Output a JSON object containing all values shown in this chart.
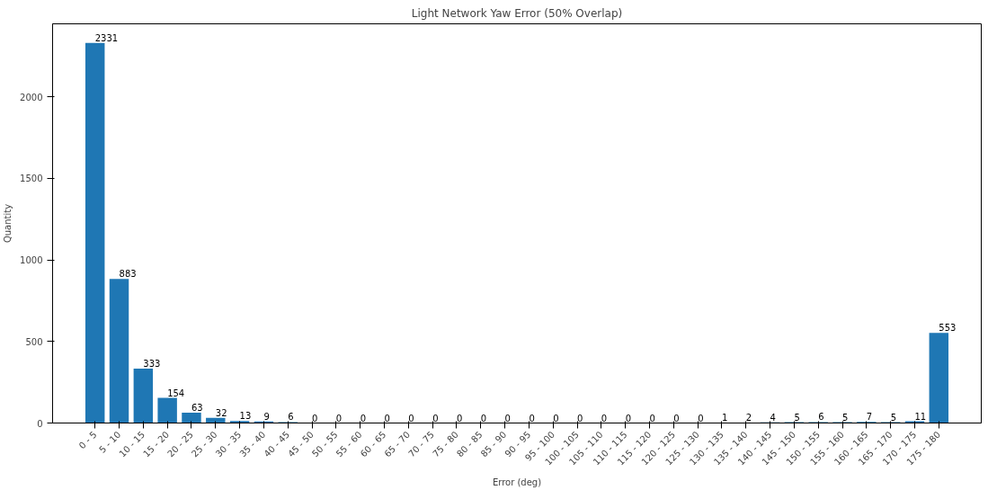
{
  "chart_data": {
    "type": "bar",
    "title": "Light Network Yaw Error (50% Overlap)",
    "xlabel": "Error (deg)",
    "ylabel": "Quantity",
    "categories": [
      "0 - 5",
      "5 - 10",
      "10 - 15",
      "15 - 20",
      "20 - 25",
      "25 - 30",
      "30 - 35",
      "35 - 40",
      "40 - 45",
      "45 - 50",
      "50 - 55",
      "55 - 60",
      "60 - 65",
      "65 - 70",
      "70 - 75",
      "75 - 80",
      "80 - 85",
      "85 - 90",
      "90 - 95",
      "95 - 100",
      "100 - 105",
      "105 - 110",
      "110 - 115",
      "115 - 120",
      "120 - 125",
      "125 - 130",
      "130 - 135",
      "135 - 140",
      "140 - 145",
      "145 - 150",
      "150 - 155",
      "155 - 160",
      "160 - 165",
      "165 - 170",
      "170 - 175",
      "175 - 180"
    ],
    "values": [
      2331,
      883,
      333,
      154,
      63,
      32,
      13,
      9,
      6,
      0,
      0,
      0,
      0,
      0,
      0,
      0,
      0,
      0,
      0,
      0,
      0,
      0,
      0,
      0,
      0,
      0,
      1,
      2,
      4,
      5,
      6,
      5,
      7,
      5,
      11,
      553
    ],
    "color": "#1f77b4",
    "ylim": [
      0,
      2448
    ],
    "yticks": [
      0,
      500,
      1000,
      1500,
      2000
    ],
    "grid": false,
    "data_labels": true
  }
}
